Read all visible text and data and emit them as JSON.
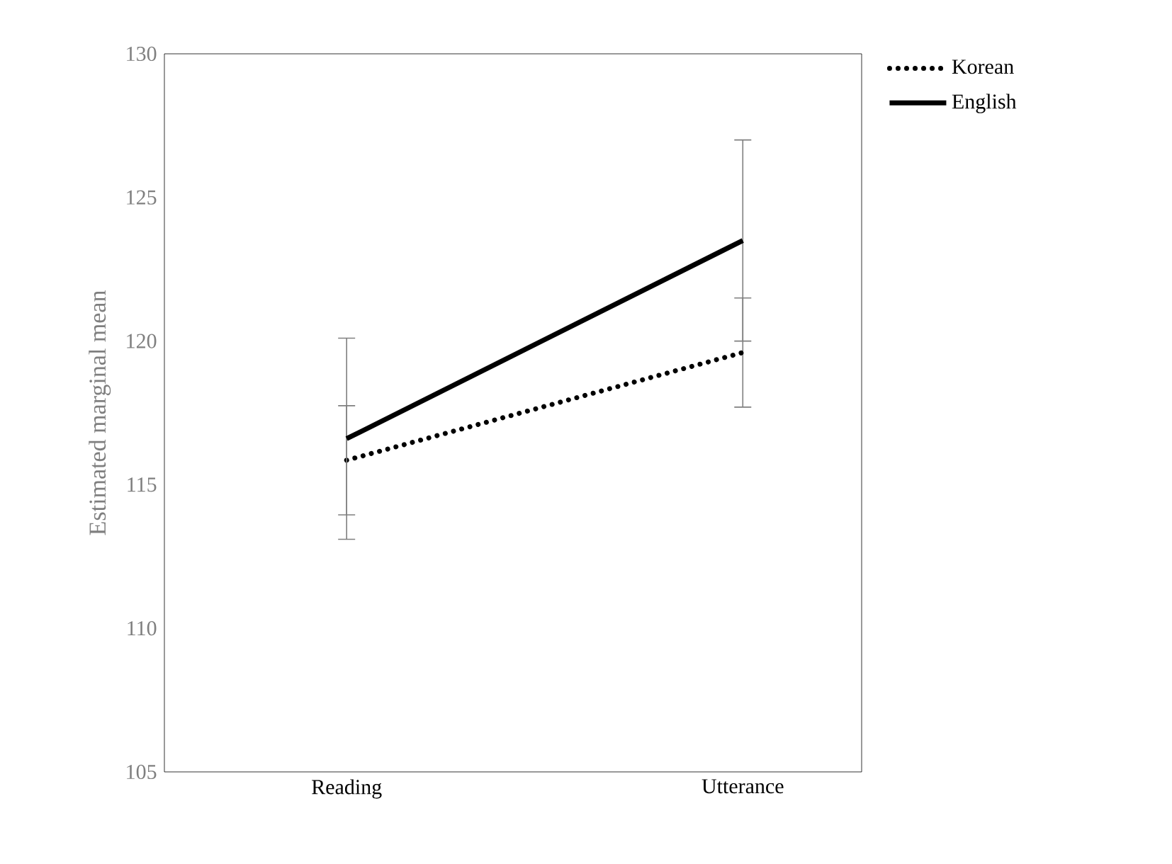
{
  "chart_data": {
    "type": "line",
    "ylabel": "Estimated marginal mean",
    "categories": [
      "Reading",
      "Utterance"
    ],
    "series": [
      {
        "name": "Korean",
        "color": "#000000",
        "line_style": "dotted",
        "values": [
          115.85,
          119.6
        ],
        "errors": [
          1.9,
          1.9
        ]
      },
      {
        "name": "English",
        "color": "#000000",
        "line_style": "solid",
        "values": [
          116.6,
          123.5
        ],
        "errors": [
          3.5,
          3.5
        ]
      }
    ],
    "ylim": [
      105,
      130
    ],
    "yticks": [
      105,
      110,
      115,
      120,
      125,
      130
    ],
    "grid": false,
    "legend": "top right",
    "marker": "none"
  }
}
